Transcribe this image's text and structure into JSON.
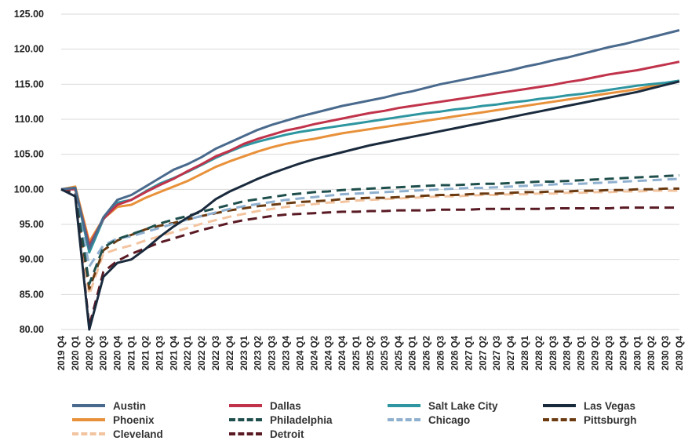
{
  "chart_data": {
    "type": "line",
    "title": "",
    "xlabel": "",
    "ylabel": "",
    "ylim": [
      80,
      125
    ],
    "yticks": [
      "80.00",
      "85.00",
      "90.00",
      "95.00",
      "100.00",
      "105.00",
      "110.00",
      "115.00",
      "120.00",
      "125.00"
    ],
    "grid": "horizontal",
    "legend_position": "bottom",
    "categories": [
      "2019 Q4",
      "2020 Q1",
      "2020 Q2",
      "2020 Q3",
      "2020 Q4",
      "2021 Q1",
      "2021 Q2",
      "2021 Q3",
      "2021 Q4",
      "2022 Q1",
      "2022 Q2",
      "2022 Q3",
      "2022 Q4",
      "2023 Q1",
      "2023 Q2",
      "2023 Q3",
      "2023 Q4",
      "2024 Q1",
      "2024 Q2",
      "2024 Q3",
      "2024 Q4",
      "2025 Q1",
      "2025 Q2",
      "2025 Q3",
      "2025 Q4",
      "2026 Q1",
      "2026 Q2",
      "2026 Q3",
      "2026 Q4",
      "2027 Q1",
      "2027 Q2",
      "2027 Q3",
      "2027 Q4",
      "2028 Q1",
      "2028 Q2",
      "2028 Q3",
      "2028 Q4",
      "2029 Q1",
      "2029 Q2",
      "2029 Q3",
      "2029 Q4",
      "2030 Q1",
      "2030 Q2",
      "2030 Q3",
      "2030 Q4"
    ],
    "series": [
      {
        "name": "Austin",
        "color": "#4a6a8d",
        "dash": "solid",
        "values": [
          100,
          100.2,
          91.5,
          96.0,
          98.5,
          99.2,
          100.4,
          101.6,
          102.8,
          103.6,
          104.6,
          105.8,
          106.7,
          107.6,
          108.5,
          109.2,
          109.8,
          110.4,
          110.9,
          111.4,
          111.9,
          112.3,
          112.7,
          113.1,
          113.6,
          114.0,
          114.5,
          115.0,
          115.4,
          115.8,
          116.2,
          116.6,
          117.0,
          117.5,
          117.9,
          118.4,
          118.8,
          119.3,
          119.8,
          120.3,
          120.7,
          121.2,
          121.7,
          122.2,
          122.7
        ]
      },
      {
        "name": "Dallas",
        "color": "#c0334b",
        "dash": "solid",
        "values": [
          100,
          100.0,
          92.0,
          95.8,
          97.8,
          98.5,
          99.6,
          100.6,
          101.5,
          102.6,
          103.6,
          104.7,
          105.5,
          106.5,
          107.2,
          107.8,
          108.4,
          108.8,
          109.3,
          109.7,
          110.1,
          110.5,
          110.9,
          111.2,
          111.6,
          111.9,
          112.2,
          112.5,
          112.8,
          113.1,
          113.4,
          113.7,
          114.0,
          114.3,
          114.6,
          114.9,
          115.3,
          115.6,
          116.0,
          116.4,
          116.7,
          117.0,
          117.4,
          117.8,
          118.2
        ]
      },
      {
        "name": "Salt Lake City",
        "color": "#2e96a0",
        "dash": "solid",
        "values": [
          100,
          100.2,
          91.0,
          95.7,
          98.1,
          98.5,
          99.7,
          100.8,
          101.6,
          102.5,
          103.5,
          104.5,
          105.4,
          106.2,
          106.8,
          107.3,
          107.8,
          108.2,
          108.5,
          108.8,
          109.1,
          109.4,
          109.7,
          110.0,
          110.3,
          110.6,
          110.9,
          111.1,
          111.4,
          111.6,
          111.9,
          112.1,
          112.4,
          112.6,
          112.9,
          113.1,
          113.4,
          113.6,
          113.9,
          114.2,
          114.5,
          114.8,
          115.0,
          115.2,
          115.5
        ]
      },
      {
        "name": "Las Vegas",
        "color": "#1a2a3d",
        "dash": "solid",
        "values": [
          100,
          99.0,
          80.0,
          87.5,
          89.5,
          90.0,
          91.5,
          93.2,
          94.7,
          96.0,
          97.0,
          98.6,
          99.7,
          100.6,
          101.5,
          102.3,
          103.0,
          103.7,
          104.3,
          104.8,
          105.3,
          105.8,
          106.3,
          106.7,
          107.1,
          107.5,
          107.9,
          108.3,
          108.7,
          109.1,
          109.5,
          109.9,
          110.3,
          110.7,
          111.1,
          111.5,
          111.9,
          112.3,
          112.7,
          113.1,
          113.5,
          113.9,
          114.4,
          114.9,
          115.4
        ]
      },
      {
        "name": "Phoenix",
        "color": "#e8913a",
        "dash": "solid",
        "values": [
          100,
          100.4,
          92.5,
          95.8,
          97.5,
          97.8,
          98.8,
          99.6,
          100.4,
          101.2,
          102.2,
          103.2,
          104.0,
          104.7,
          105.4,
          106.0,
          106.5,
          106.9,
          107.2,
          107.6,
          108.0,
          108.3,
          108.6,
          108.9,
          109.2,
          109.5,
          109.8,
          110.1,
          110.4,
          110.7,
          111.0,
          111.3,
          111.6,
          111.9,
          112.2,
          112.5,
          112.8,
          113.1,
          113.4,
          113.7,
          114.0,
          114.3,
          114.7,
          115.1,
          115.5
        ]
      },
      {
        "name": "Philadelphia",
        "color": "#1f4f4c",
        "dash": "dashed",
        "values": [
          100,
          99.5,
          86.5,
          91.7,
          92.9,
          93.6,
          94.3,
          95.1,
          95.7,
          96.2,
          96.8,
          97.3,
          97.8,
          98.3,
          98.6,
          98.9,
          99.2,
          99.4,
          99.6,
          99.7,
          99.9,
          100.0,
          100.1,
          100.2,
          100.3,
          100.4,
          100.5,
          100.6,
          100.6,
          100.7,
          100.8,
          100.8,
          100.9,
          101.0,
          101.1,
          101.1,
          101.2,
          101.3,
          101.4,
          101.5,
          101.6,
          101.7,
          101.8,
          101.9,
          102.0
        ]
      },
      {
        "name": "Chicago",
        "color": "#8fb0cf",
        "dash": "dashed",
        "values": [
          100,
          99.5,
          89.0,
          92.0,
          93.0,
          93.3,
          93.9,
          94.5,
          95.1,
          95.7,
          96.2,
          96.7,
          97.2,
          97.6,
          97.9,
          98.2,
          98.5,
          98.7,
          98.9,
          99.1,
          99.3,
          99.4,
          99.5,
          99.6,
          99.7,
          99.8,
          99.9,
          100.0,
          100.1,
          100.2,
          100.2,
          100.3,
          100.4,
          100.5,
          100.6,
          100.7,
          100.8,
          100.8,
          100.9,
          101.0,
          101.1,
          101.2,
          101.3,
          101.4,
          101.5
        ]
      },
      {
        "name": "Pittsburgh",
        "color": "#6b3a10",
        "dash": "dashed",
        "values": [
          100,
          99.4,
          85.8,
          91.3,
          92.7,
          93.5,
          94.3,
          94.8,
          95.2,
          95.7,
          96.2,
          96.6,
          97.0,
          97.3,
          97.6,
          97.8,
          98.0,
          98.2,
          98.3,
          98.4,
          98.6,
          98.7,
          98.8,
          98.8,
          98.9,
          99.0,
          99.1,
          99.2,
          99.2,
          99.3,
          99.4,
          99.4,
          99.5,
          99.6,
          99.6,
          99.7,
          99.7,
          99.8,
          99.8,
          99.9,
          99.9,
          100.0,
          100.0,
          100.1,
          100.1
        ]
      },
      {
        "name": "Cleveland",
        "color": "#f2c4a0",
        "dash": "dashed",
        "values": [
          100,
          99.3,
          85.0,
          90.8,
          91.5,
          92.0,
          92.7,
          93.3,
          93.9,
          94.5,
          95.1,
          95.6,
          96.1,
          96.5,
          96.9,
          97.2,
          97.5,
          97.7,
          97.9,
          98.1,
          98.2,
          98.4,
          98.5,
          98.6,
          98.7,
          98.8,
          98.9,
          99.0,
          99.0,
          99.1,
          99.2,
          99.2,
          99.3,
          99.3,
          99.4,
          99.4,
          99.5,
          99.5,
          99.6,
          99.6,
          99.7,
          99.7,
          99.8,
          99.8,
          99.8
        ]
      },
      {
        "name": "Detroit",
        "color": "#5a1a24",
        "dash": "dashed",
        "values": [
          100,
          99.2,
          80.5,
          88.2,
          89.8,
          90.8,
          91.6,
          92.4,
          93.0,
          93.6,
          94.2,
          94.7,
          95.2,
          95.6,
          95.9,
          96.2,
          96.4,
          96.5,
          96.6,
          96.7,
          96.8,
          96.8,
          96.9,
          96.9,
          97.0,
          97.0,
          97.0,
          97.1,
          97.1,
          97.1,
          97.2,
          97.2,
          97.2,
          97.2,
          97.2,
          97.3,
          97.3,
          97.3,
          97.3,
          97.3,
          97.4,
          97.4,
          97.4,
          97.4,
          97.4
        ]
      }
    ]
  }
}
